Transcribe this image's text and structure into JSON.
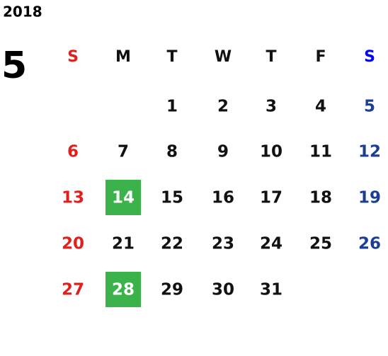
{
  "calendar": {
    "year": "2018",
    "month": "5",
    "weekdays": [
      "S",
      "M",
      "T",
      "W",
      "T",
      "F",
      "S"
    ],
    "weeks": [
      [
        null,
        null,
        1,
        2,
        3,
        4,
        5
      ],
      [
        6,
        7,
        8,
        9,
        10,
        11,
        12
      ],
      [
        13,
        14,
        15,
        16,
        17,
        18,
        19
      ],
      [
        20,
        21,
        22,
        23,
        24,
        25,
        26
      ],
      [
        27,
        28,
        29,
        30,
        31,
        null,
        null
      ]
    ],
    "highlighted_days": [
      14,
      28
    ],
    "colors": {
      "sunday": "#e0201c",
      "saturday_header": "#0000ff",
      "saturday": "#1c3f94",
      "weekday": "#111111",
      "highlight": "#3bb34a",
      "highlight_text": "#ffffff"
    }
  }
}
